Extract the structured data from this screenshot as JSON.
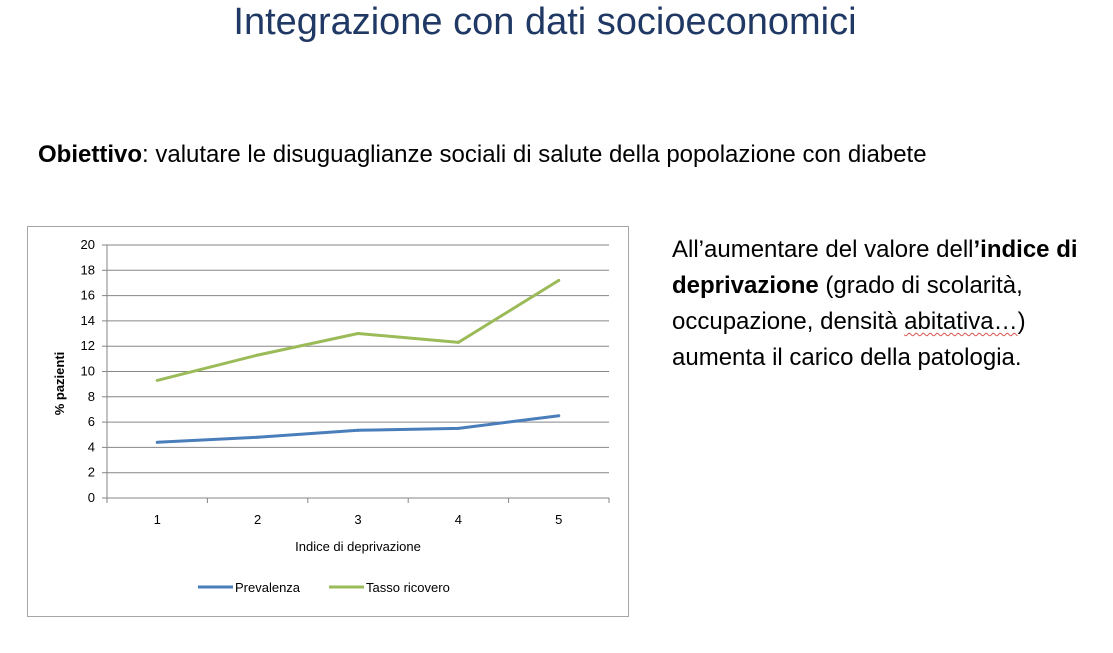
{
  "slide": {
    "title": "Integrazione con dati socioeconomici",
    "objective_label": "Obiettivo",
    "objective_text": ":  valutare le disuguaglianze sociali di salute della popolazione con diabete",
    "side_text": {
      "part1": "All’aumentare del valore dell",
      "part2": "’indice di deprivazione",
      "part3": " (grado di scolarità, occupazione, densità ",
      "part4": "abitativa…",
      "part5": ") aumenta il carico della patologia."
    }
  },
  "colors": {
    "title": "#1f3864",
    "prevalenza": "#4a7ebb",
    "tasso_ricovero": "#9bbb59",
    "grid": "#868686"
  },
  "chart_data": {
    "type": "line",
    "categories": [
      "1",
      "2",
      "3",
      "4",
      "5"
    ],
    "series": [
      {
        "name": "Prevalenza",
        "values": [
          4.4,
          4.8,
          5.35,
          5.5,
          6.5
        ]
      },
      {
        "name": "Tasso ricovero",
        "values": [
          9.3,
          11.3,
          13.0,
          12.3,
          17.2
        ]
      }
    ],
    "xlabel": "Indice di deprivazione",
    "ylabel": "% pazienti",
    "ylim": [
      0,
      20
    ],
    "yticks": [
      "0",
      "2",
      "4",
      "6",
      "8",
      "10",
      "12",
      "14",
      "16",
      "18",
      "20"
    ],
    "grid": true,
    "legend_position": "bottom"
  }
}
